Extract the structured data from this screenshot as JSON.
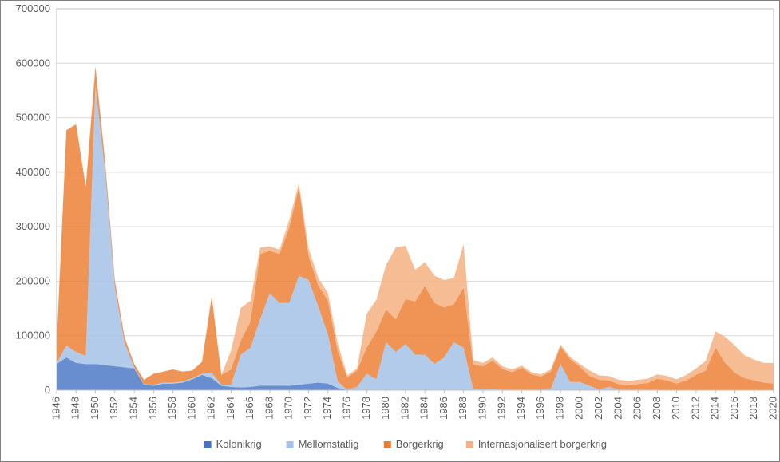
{
  "chart": {
    "type": "area-stacked",
    "background_color": "#ffffff",
    "plot_border_color": "#bfbfbf",
    "grid_color": "#d9d9d9",
    "label_color": "#595959",
    "label_fontsize": 13,
    "ylim": [
      0,
      700000
    ],
    "ytick_step": 100000,
    "yticks": [
      0,
      100000,
      200000,
      300000,
      400000,
      500000,
      600000,
      700000
    ],
    "x_categories": [
      1946,
      1947,
      1948,
      1949,
      1950,
      1951,
      1952,
      1953,
      1954,
      1955,
      1956,
      1957,
      1958,
      1959,
      1960,
      1961,
      1962,
      1963,
      1964,
      1965,
      1966,
      1967,
      1968,
      1969,
      1970,
      1971,
      1972,
      1973,
      1974,
      1975,
      1976,
      1977,
      1978,
      1979,
      1980,
      1981,
      1982,
      1983,
      1984,
      1985,
      1986,
      1987,
      1988,
      1989,
      1990,
      1991,
      1992,
      1993,
      1994,
      1995,
      1996,
      1997,
      1998,
      1999,
      2000,
      2001,
      2002,
      2003,
      2004,
      2005,
      2006,
      2007,
      2008,
      2009,
      2010,
      2011,
      2012,
      2013,
      2014,
      2015,
      2016,
      2017,
      2018,
      2019,
      2020
    ],
    "x_tick_interval": 2,
    "series": [
      {
        "key": "kolonikrig",
        "label": "Kolonikrig",
        "color": "#4472c4",
        "opacity": 0.8,
        "values": [
          48000,
          60000,
          50000,
          48000,
          48000,
          46000,
          44000,
          42000,
          40000,
          10000,
          8000,
          12000,
          12000,
          14000,
          20000,
          28000,
          22000,
          8000,
          6000,
          5000,
          6000,
          8000,
          8000,
          8000,
          8000,
          10000,
          12000,
          14000,
          12000,
          4000,
          0,
          0,
          0,
          0,
          0,
          0,
          0,
          0,
          0,
          0,
          0,
          0,
          0,
          0,
          0,
          0,
          0,
          0,
          0,
          0,
          0,
          0,
          0,
          0,
          0,
          0,
          0,
          0,
          0,
          0,
          0,
          0,
          0,
          0,
          0,
          0,
          0,
          0,
          0,
          0,
          0,
          0,
          0,
          0,
          0
        ]
      },
      {
        "key": "mellomstatlig",
        "label": "Mellomstatlig",
        "color": "#a6c2e8",
        "opacity": 0.85,
        "values": [
          2000,
          22000,
          20000,
          15000,
          510000,
          355000,
          145000,
          45000,
          2000,
          1000,
          2000,
          2000,
          2000,
          2000,
          2000,
          2000,
          10000,
          2000,
          4000,
          60000,
          72000,
          122000,
          170000,
          152000,
          152000,
          200000,
          190000,
          140000,
          90000,
          12000,
          1000,
          6000,
          30000,
          20000,
          88000,
          70000,
          85000,
          65000,
          65000,
          48000,
          60000,
          88000,
          78000,
          2000,
          2000,
          2000,
          1000,
          1000,
          1000,
          1000,
          1000,
          2000,
          48000,
          15000,
          15000,
          8000,
          1000,
          6000,
          1000,
          1000,
          1000,
          1000,
          1000,
          0,
          0,
          0,
          0,
          0,
          0,
          0,
          0,
          0,
          0,
          0,
          0
        ]
      },
      {
        "key": "borgerkrig",
        "label": "Borgerkrig",
        "color": "#ed7d31",
        "opacity": 0.82,
        "values": [
          38000,
          395000,
          418000,
          310000,
          36000,
          18000,
          12000,
          10000,
          6000,
          8000,
          20000,
          20000,
          24000,
          18000,
          14000,
          22000,
          140000,
          18000,
          28000,
          26000,
          48000,
          120000,
          78000,
          90000,
          138000,
          162000,
          44000,
          38000,
          62000,
          56000,
          22000,
          30000,
          48000,
          88000,
          60000,
          60000,
          82000,
          98000,
          126000,
          112000,
          92000,
          70000,
          110000,
          45000,
          42000,
          52000,
          38000,
          32000,
          40000,
          28000,
          24000,
          32000,
          32000,
          42000,
          28000,
          18000,
          18000,
          12000,
          10000,
          8000,
          10000,
          12000,
          20000,
          18000,
          12000,
          18000,
          28000,
          36000,
          78000,
          50000,
          32000,
          22000,
          18000,
          14000,
          12000
        ]
      },
      {
        "key": "intl_borgerkrig",
        "label": "Internasjonalisert borgerkrig",
        "color": "#f4b183",
        "opacity": 0.85,
        "values": [
          0,
          0,
          0,
          0,
          0,
          0,
          0,
          0,
          0,
          0,
          0,
          0,
          0,
          0,
          0,
          0,
          0,
          0,
          35000,
          60000,
          38000,
          12000,
          8000,
          8000,
          14000,
          8000,
          14000,
          14000,
          14000,
          14000,
          4000,
          4000,
          62000,
          58000,
          82000,
          132000,
          98000,
          58000,
          44000,
          50000,
          50000,
          48000,
          80000,
          8000,
          6000,
          6000,
          5000,
          5000,
          4000,
          4000,
          4000,
          4000,
          4000,
          4000,
          5000,
          10000,
          8000,
          8000,
          8000,
          8000,
          8000,
          8000,
          8000,
          8000,
          8000,
          10000,
          12000,
          18000,
          30000,
          48000,
          50000,
          42000,
          38000,
          36000,
          38000
        ]
      }
    ],
    "legend": {
      "items": [
        "Kolonikrig",
        "Mellomstatlig",
        "Borgerkrig",
        "Internasjonalisert borgerkrig"
      ],
      "marker_colors": [
        "#4472c4",
        "#a6c2e8",
        "#ed7d31",
        "#f4b183"
      ]
    }
  }
}
